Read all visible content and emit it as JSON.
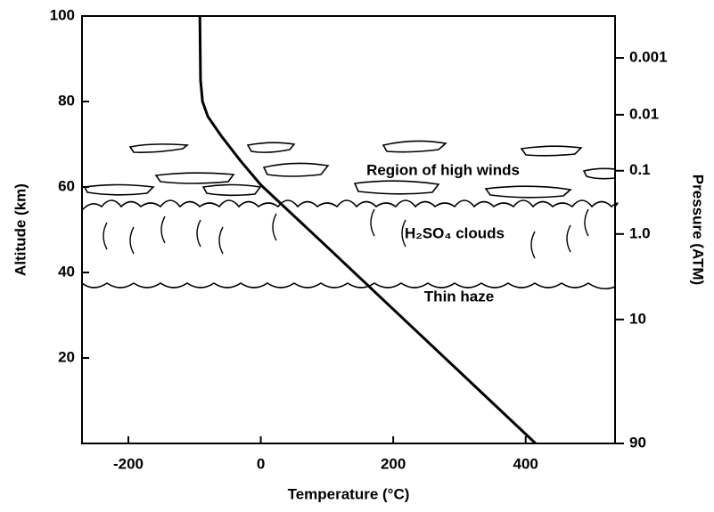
{
  "chart_data": {
    "type": "line",
    "x_label": "Temperature (°C)",
    "y_label": "Altitude (km)",
    "y2_label": "Pressure (ATM)",
    "x": [
      -92,
      -91,
      -88,
      -80,
      -60,
      -30,
      0,
      100,
      200,
      300,
      415
    ],
    "values": [
      100,
      85,
      80,
      76.5,
      72,
      66,
      60.5,
      46,
      31.4,
      16.8,
      0
    ],
    "color": "#000000",
    "xlim": [
      -270,
      535
    ],
    "ylim": [
      0,
      100
    ],
    "xticks": [
      -200,
      0,
      200,
      400
    ],
    "yticks": [
      20,
      40,
      60,
      80,
      100
    ],
    "y2ticks": [
      0.001,
      0.01,
      0.1,
      {
        "value": 1,
        "label": "1.0"
      },
      10,
      90
    ],
    "y2tick_altitudes": [
      90.2,
      76.9,
      63.8,
      49,
      29,
      0
    ],
    "annotations": [
      "Region of high winds",
      "H₂SO₄ clouds",
      "Thin haze"
    ]
  }
}
